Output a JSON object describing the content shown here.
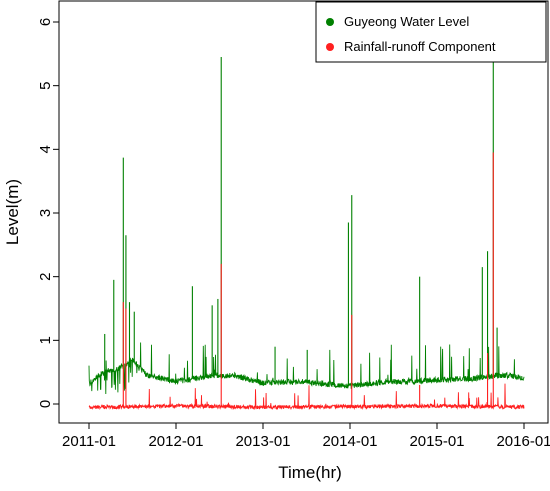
{
  "chart_data": {
    "type": "line",
    "xlabel": "Time(hr)",
    "ylabel": "Level(m)",
    "x_ticks": [
      "2011-01",
      "2012-01",
      "2013-01",
      "2014-01",
      "2015-01",
      "2016-01"
    ],
    "y_ticks": [
      0,
      1,
      2,
      3,
      4,
      5,
      6
    ],
    "xlim": [
      "2011-01-01",
      "2016-01-01"
    ],
    "ylim": [
      -0.2,
      6.3
    ],
    "grid": false,
    "legend": "top-right",
    "series": [
      {
        "name": "Guyeong Water Level",
        "color": "#008000",
        "baseline": [
          [
            "2011-01-01",
            0.32
          ],
          [
            "2011-03-01",
            0.5
          ],
          [
            "2011-05-01",
            0.55
          ],
          [
            "2011-07-01",
            0.7
          ],
          [
            "2011-09-01",
            0.45
          ],
          [
            "2012-01-01",
            0.35
          ],
          [
            "2012-06-01",
            0.45
          ],
          [
            "2012-09-01",
            0.45
          ],
          [
            "2013-01-01",
            0.33
          ],
          [
            "2013-06-01",
            0.35
          ],
          [
            "2013-09-01",
            0.32
          ],
          [
            "2014-01-01",
            0.28
          ],
          [
            "2014-06-01",
            0.35
          ],
          [
            "2014-09-01",
            0.35
          ],
          [
            "2015-01-01",
            0.38
          ],
          [
            "2015-06-01",
            0.4
          ],
          [
            "2015-09-01",
            0.45
          ],
          [
            "2015-11-01",
            0.45
          ],
          [
            "2016-01-01",
            0.4
          ]
        ],
        "peaks": [
          [
            "2011-03-08",
            1.1
          ],
          [
            "2011-04-15",
            1.95
          ],
          [
            "2011-05-25",
            3.87
          ],
          [
            "2011-06-05",
            2.65
          ],
          [
            "2011-06-20",
            1.6
          ],
          [
            "2011-07-10",
            1.45
          ],
          [
            "2012-03-10",
            1.85
          ],
          [
            "2012-06-01",
            1.55
          ],
          [
            "2012-06-25",
            1.65
          ],
          [
            "2012-07-09",
            5.45
          ],
          [
            "2013-02-20",
            0.9
          ],
          [
            "2013-07-05",
            0.85
          ],
          [
            "2013-12-25",
            2.85
          ],
          [
            "2014-01-08",
            3.28
          ],
          [
            "2014-10-20",
            2.0
          ],
          [
            "2015-07-10",
            2.15
          ],
          [
            "2015-08-01",
            2.4
          ],
          [
            "2015-08-25",
            6.25
          ],
          [
            "2015-09-10",
            1.2
          ]
        ]
      },
      {
        "name": "Rainfall-runoff Component",
        "color": "#ff2020",
        "baseline": [
          [
            "2011-01-01",
            -0.05
          ],
          [
            "2012-01-01",
            -0.03
          ],
          [
            "2013-01-01",
            -0.05
          ],
          [
            "2014-01-01",
            -0.04
          ],
          [
            "2015-01-01",
            -0.03
          ],
          [
            "2016-01-01",
            -0.05
          ]
        ],
        "peaks": [
          [
            "2011-05-25",
            1.6
          ],
          [
            "2011-06-05",
            1.5
          ],
          [
            "2012-07-09",
            2.2
          ],
          [
            "2014-01-08",
            1.4
          ],
          [
            "2014-10-20",
            0.3
          ],
          [
            "2015-08-01",
            0.8
          ],
          [
            "2015-08-25",
            3.95
          ]
        ]
      }
    ]
  }
}
